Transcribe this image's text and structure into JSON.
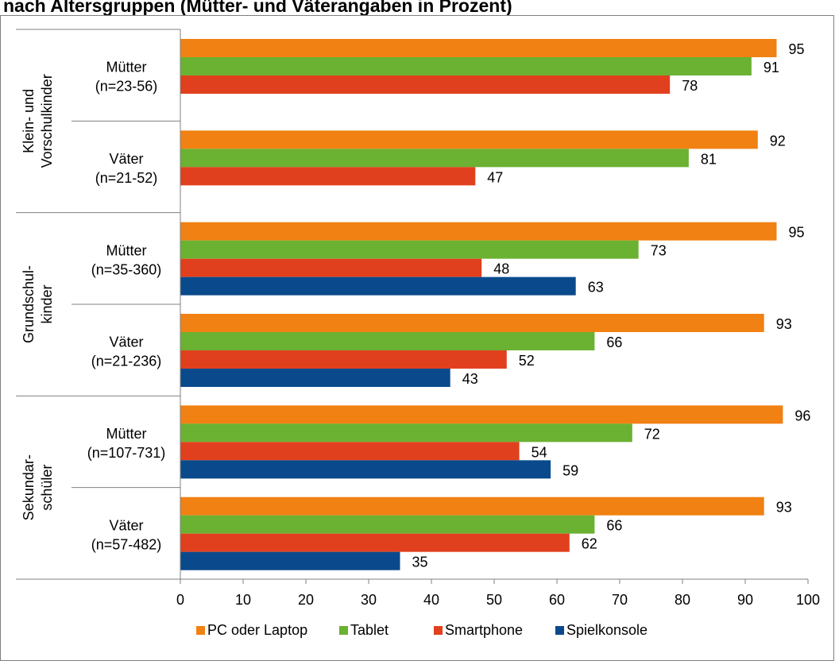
{
  "title": "nach Altersgruppen (Mütter- und Väterangaben in Prozent)",
  "colors": {
    "PC oder Laptop": "#F08112",
    "Tablet": "#6BB132",
    "Smartphone": "#E1401E",
    "Spielkonsole": "#0A4A8C"
  },
  "chart_data": {
    "type": "bar",
    "orientation": "horizontal",
    "xlim": [
      0,
      100
    ],
    "xticks": [
      0,
      10,
      20,
      30,
      40,
      50,
      60,
      70,
      80,
      90,
      100
    ],
    "grid": false,
    "legend_position": "bottom",
    "series_names": [
      "PC oder Laptop",
      "Tablet",
      "Smartphone",
      "Spielkonsole"
    ],
    "groups": [
      {
        "label_lines": [
          "Klein- und",
          "Vorschulkinder"
        ],
        "subgroups": [
          {
            "label_lines": [
              "Mütter",
              "(n=23-56)"
            ],
            "values": [
              95,
              91,
              78,
              null
            ]
          },
          {
            "label_lines": [
              "Väter",
              "(n=21-52)"
            ],
            "values": [
              92,
              81,
              47,
              null
            ]
          }
        ]
      },
      {
        "label_lines": [
          "Grundschul-",
          "kinder"
        ],
        "subgroups": [
          {
            "label_lines": [
              "Mütter",
              "(n=35-360)"
            ],
            "values": [
              95,
              73,
              48,
              63
            ]
          },
          {
            "label_lines": [
              "Väter",
              "(n=21-236)"
            ],
            "values": [
              93,
              66,
              52,
              43
            ]
          }
        ]
      },
      {
        "label_lines": [
          "Sekundar-",
          "schüler"
        ],
        "subgroups": [
          {
            "label_lines": [
              "Mütter",
              "(n=107-731)"
            ],
            "values": [
              96,
              72,
              54,
              59
            ]
          },
          {
            "label_lines": [
              "Väter",
              "(n=57-482)"
            ],
            "values": [
              93,
              66,
              62,
              35
            ]
          }
        ]
      }
    ]
  }
}
